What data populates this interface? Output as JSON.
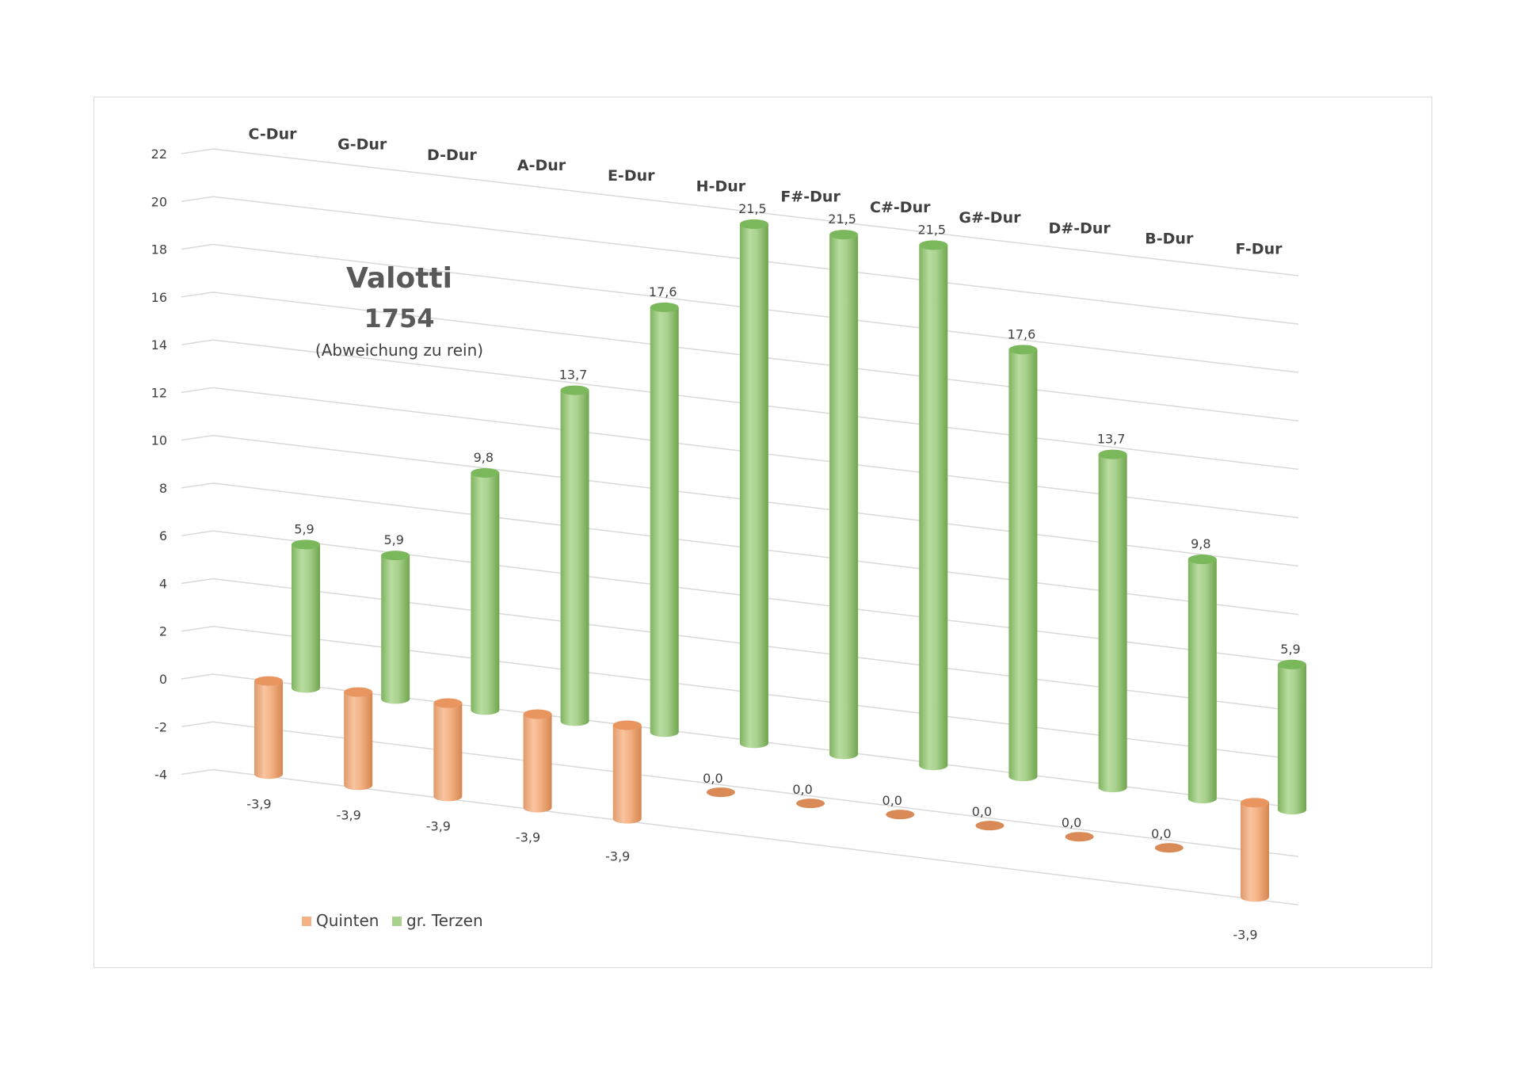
{
  "colors": {
    "quinten": "#f4b183",
    "quinten_dark": "#d98a57",
    "terzen": "#a9d18e",
    "terzen_dark": "#6fa54e",
    "grid": "#d9d9d9",
    "text": "#404040"
  },
  "chart_data": {
    "type": "bar",
    "bar_shape": "cylinder-3d",
    "title": "Valotti",
    "subtitle": "1754",
    "note": "(Abweichung zu rein)",
    "categories": [
      "C-Dur",
      "G-Dur",
      "D-Dur",
      "A-Dur",
      "E-Dur",
      "H-Dur",
      "F#-Dur",
      "C#-Dur",
      "G#-Dur",
      "D#-Dur",
      "B-Dur",
      "F-Dur"
    ],
    "series": [
      {
        "name": "Quinten",
        "values": [
          -3.9,
          -3.9,
          -3.9,
          -3.9,
          -3.9,
          0.0,
          0.0,
          0.0,
          0.0,
          0.0,
          0.0,
          -3.9
        ],
        "labels": [
          "-3,9",
          "-3,9",
          "-3,9",
          "-3,9",
          "-3,9",
          "0,0",
          "0,0",
          "0,0",
          "0,0",
          "0,0",
          "0,0",
          "-3,9"
        ]
      },
      {
        "name": "gr. Terzen",
        "values": [
          5.9,
          5.9,
          9.8,
          13.7,
          17.6,
          21.5,
          21.5,
          21.5,
          17.6,
          13.7,
          9.8,
          5.9
        ],
        "labels": [
          "5,9",
          "5,9",
          "9,8",
          "13,7",
          "17,6",
          "21,5",
          "21,5",
          "21,5",
          "17,6",
          "13,7",
          "9,8",
          "5,9"
        ]
      }
    ],
    "y_ticks": [
      22,
      20,
      18,
      16,
      14,
      12,
      10,
      8,
      6,
      4,
      2,
      0,
      -2,
      -4
    ],
    "ylim": [
      -4,
      22
    ],
    "grid": true,
    "legend": {
      "position": "bottom-left",
      "items": [
        "Quinten",
        "gr. Terzen"
      ]
    }
  }
}
